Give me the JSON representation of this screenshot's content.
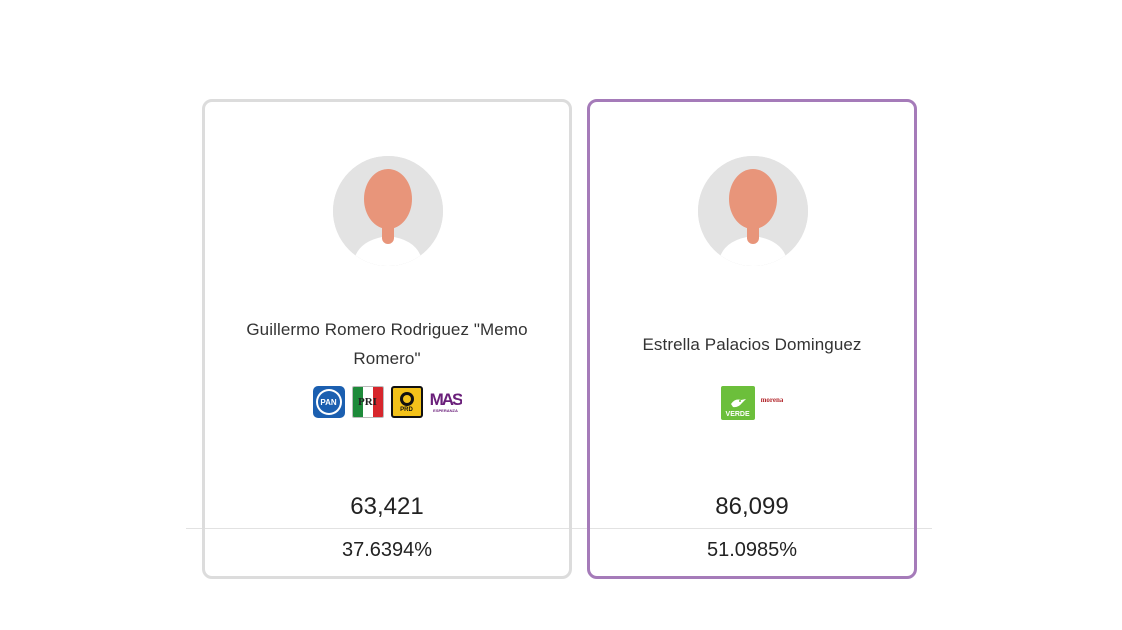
{
  "candidates": [
    {
      "name": "Guillermo Romero Rodriguez \"Memo Romero\"",
      "parties": [
        {
          "label": "PAN",
          "icon": "pan-logo"
        },
        {
          "label": "PRI",
          "icon": "pri-logo"
        },
        {
          "label": "PRD",
          "icon": "prd-logo"
        },
        {
          "label": "MAS",
          "sublabel": "ESPERANZA",
          "icon": "mas-logo"
        }
      ],
      "votes": "63,421",
      "percent": "37.6394%",
      "highlighted": false,
      "border_color": "#dcdcdc"
    },
    {
      "name": "Estrella Palacios Dominguez",
      "parties": [
        {
          "label": "VERDE",
          "icon": "verde-logo"
        },
        {
          "label": "morena",
          "icon": "morena-logo"
        }
      ],
      "votes": "86,099",
      "percent": "51.0985%",
      "highlighted": true,
      "border_color": "#a57bb9"
    }
  ],
  "avatar_icon": "person-silhouette-icon",
  "colors": {
    "avatar_bg": "#e3e3e3",
    "skin": "#e8957a",
    "winner_border": "#a57bb9"
  }
}
